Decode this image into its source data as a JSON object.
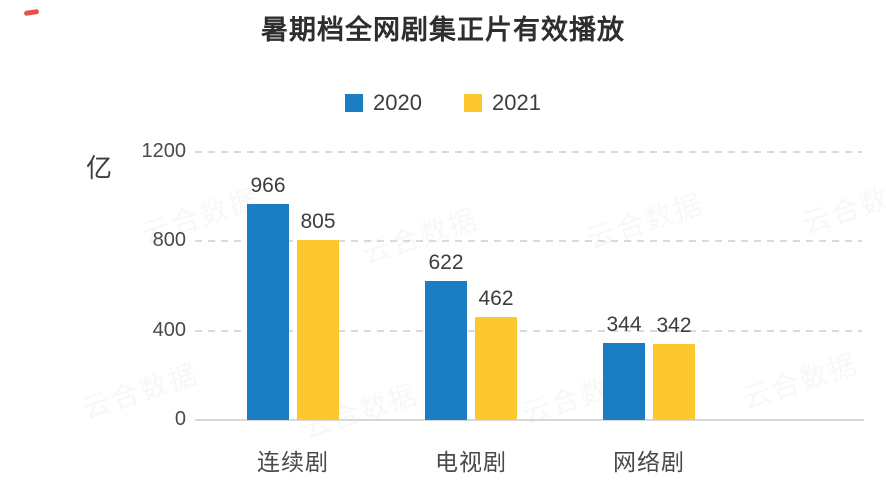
{
  "chart_data": {
    "type": "bar",
    "title": "暑期档全网剧集正片有效播放",
    "unit_label": "亿",
    "categories": [
      "连续剧",
      "电视剧",
      "网络剧"
    ],
    "series": [
      {
        "name": "2020",
        "color": "#1b7ec2",
        "values": [
          966,
          622,
          344
        ]
      },
      {
        "name": "2021",
        "color": "#fdc72e",
        "values": [
          805,
          462,
          342
        ]
      }
    ],
    "yticks": [
      1200,
      800,
      400,
      0
    ],
    "ylim": [
      0,
      1200
    ],
    "grid": "dashed-horizontal",
    "legend_position": "top-center",
    "axis_line_color": "#d8d8d8",
    "text_color": "#3d3d3d"
  },
  "watermark": {
    "text": "云合数据"
  },
  "corner_mark": {
    "color": "#e03e3e"
  }
}
